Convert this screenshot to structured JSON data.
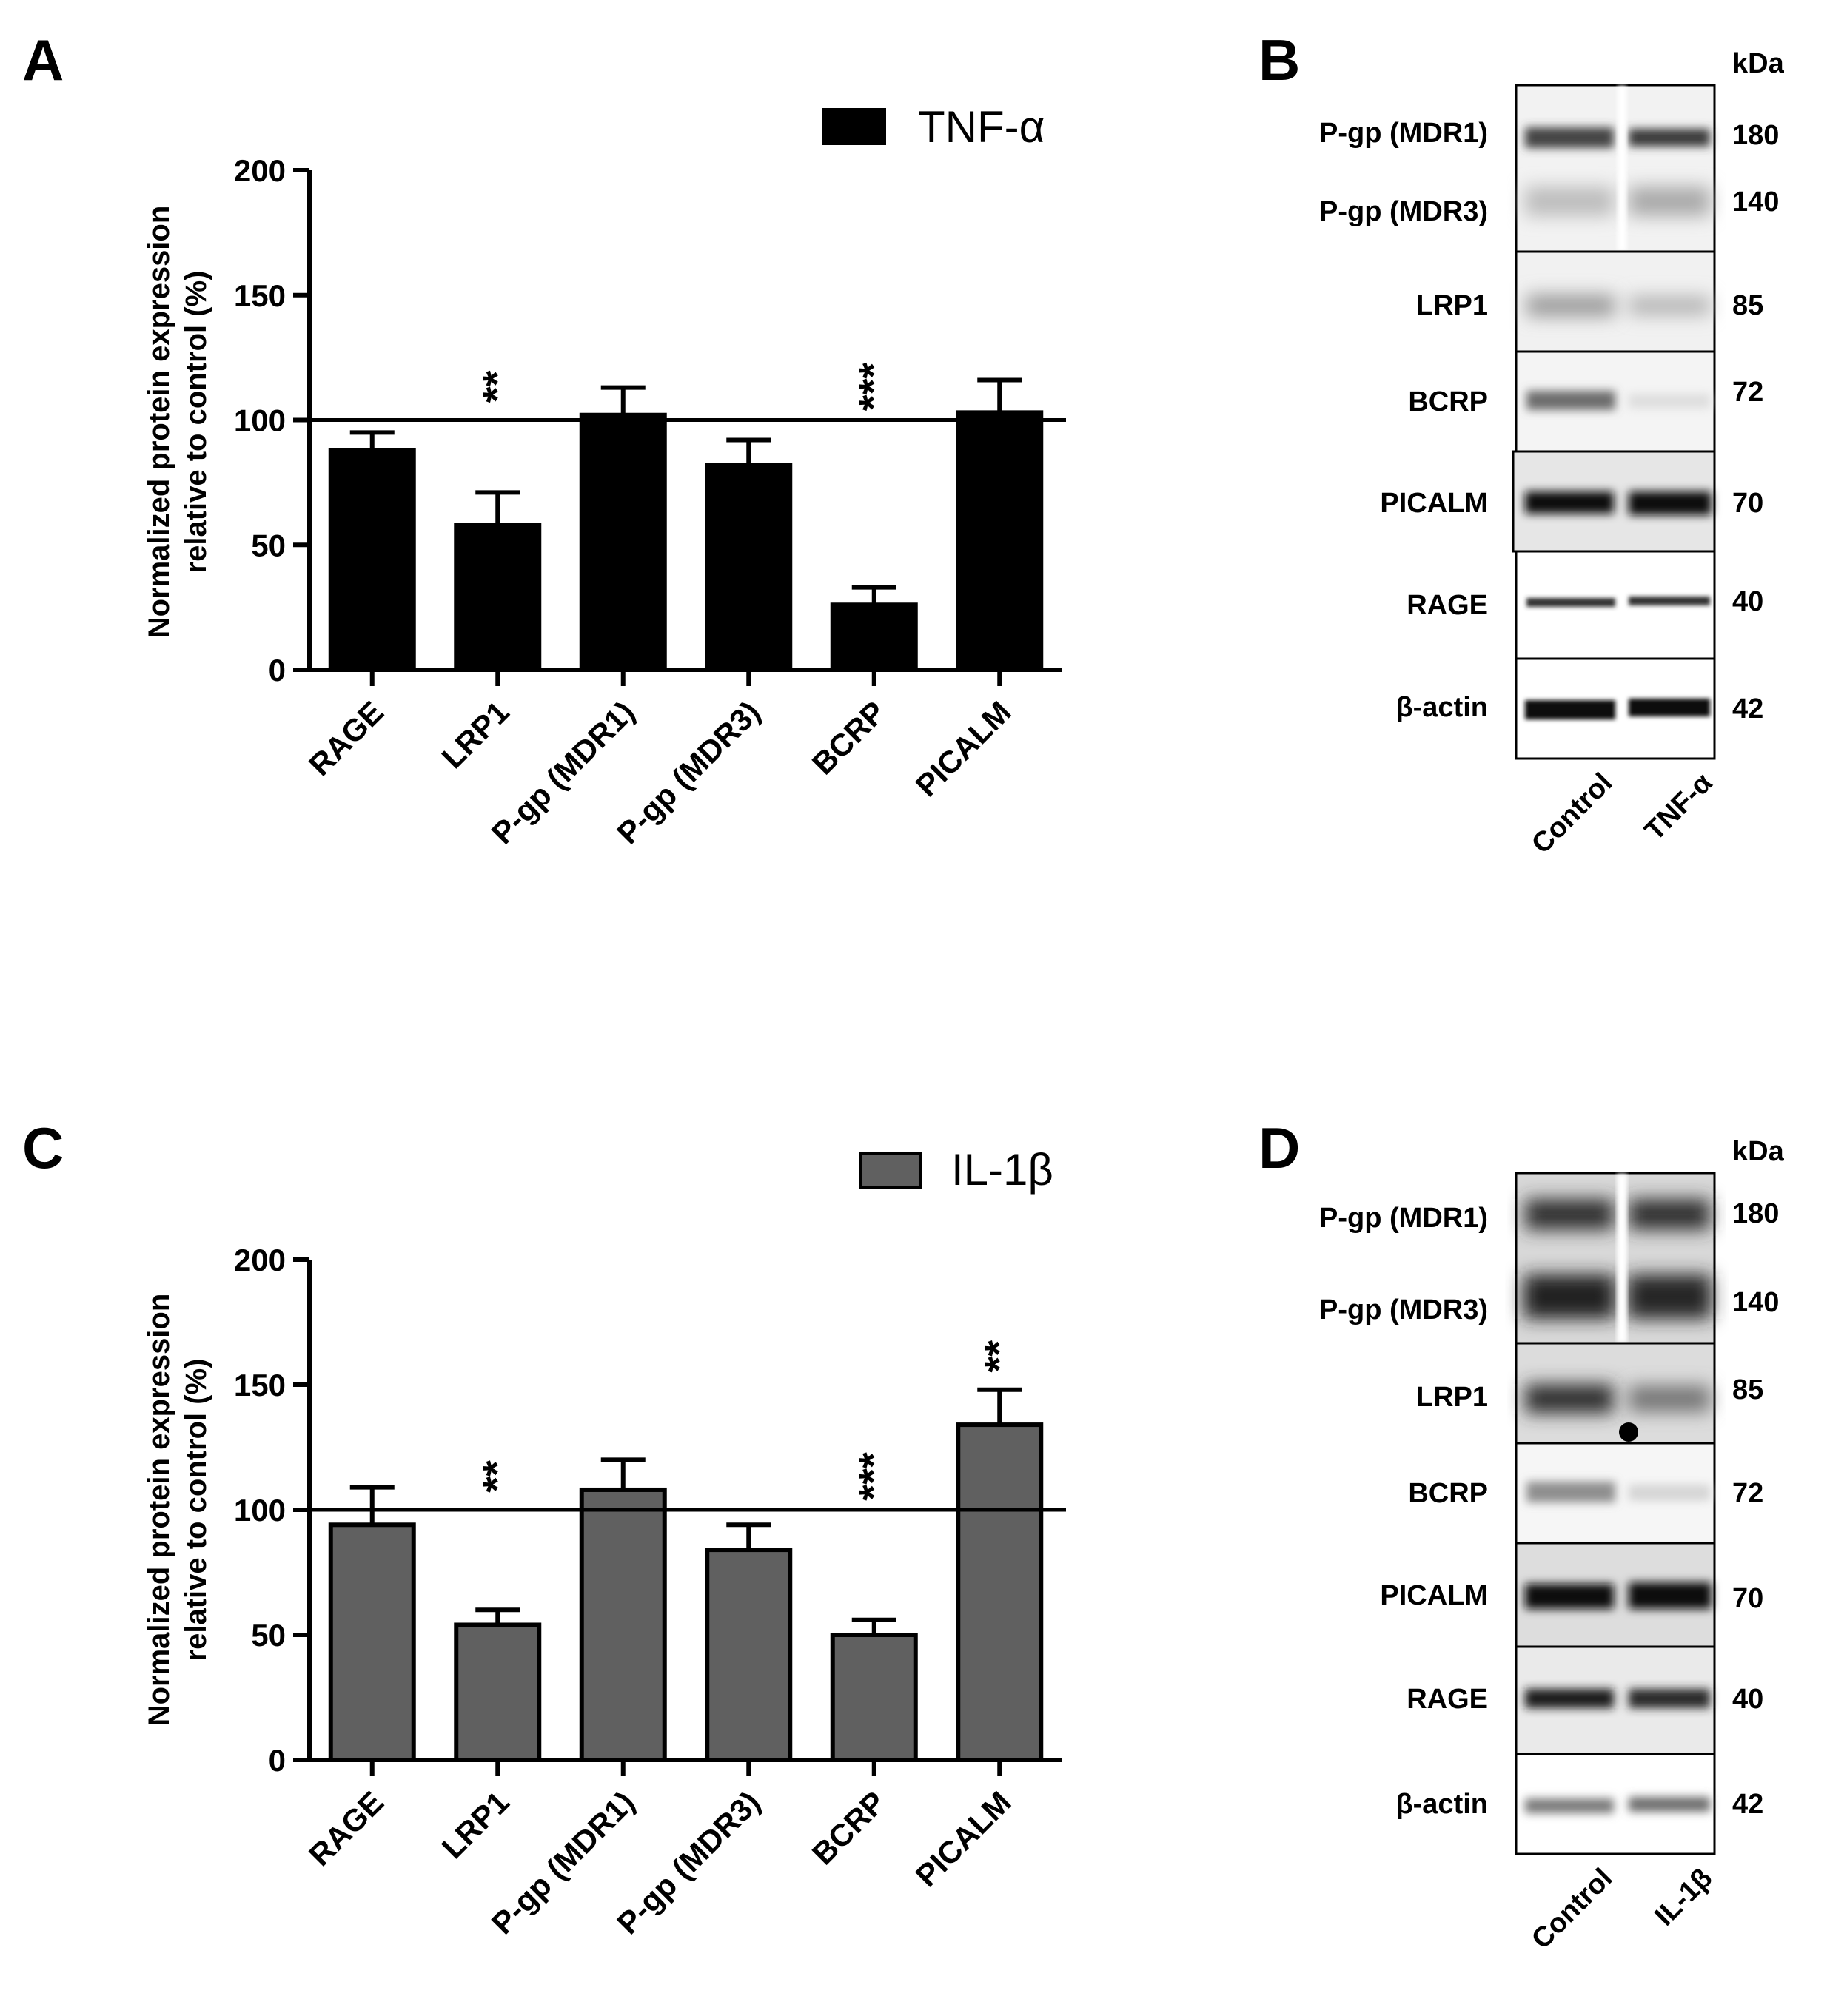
{
  "chart_data": [
    {
      "panel": "A",
      "type": "bar",
      "legend": "TNF-α",
      "bar_color": "#000000",
      "ylabel_line1": "Normalized protein expression",
      "ylabel_line2": "relative to control (%)",
      "ylim": [
        0,
        200
      ],
      "yticks": [
        0,
        50,
        100,
        150,
        200
      ],
      "yticks_text": [
        "0",
        "50",
        "100",
        "150",
        "200"
      ],
      "reference_line": 100,
      "categories": [
        "RAGE",
        "LRP1",
        "P-gp (MDR1)",
        "P-gp (MDR3)",
        "BCRP",
        "PICALM"
      ],
      "values": [
        88,
        58,
        102,
        82,
        26,
        103
      ],
      "errors": [
        7,
        13,
        11,
        10,
        7,
        13
      ],
      "significance": [
        "",
        "**",
        "",
        "",
        "***",
        ""
      ]
    },
    {
      "panel": "C",
      "type": "bar",
      "legend": "IL-1β",
      "bar_color": "#606060",
      "ylabel_line1": "Normalized protein expression",
      "ylabel_line2": "relative to control (%)",
      "ylim": [
        0,
        200
      ],
      "yticks": [
        0,
        50,
        100,
        150,
        200
      ],
      "yticks_text": [
        "0",
        "50",
        "100",
        "150",
        "200"
      ],
      "reference_line": 100,
      "categories": [
        "RAGE",
        "LRP1",
        "P-gp (MDR1)",
        "P-gp (MDR3)",
        "BCRP",
        "PICALM"
      ],
      "values": [
        94,
        54,
        108,
        84,
        50,
        134
      ],
      "errors": [
        15,
        6,
        12,
        10,
        6,
        14
      ],
      "significance": [
        "",
        "**",
        "",
        "",
        "***",
        "**"
      ]
    }
  ],
  "blots": [
    {
      "panel": "B",
      "unit_header": "kDa",
      "rows": [
        {
          "label": "P-gp (MDR1)",
          "kda": "180"
        },
        {
          "label": "P-gp (MDR3)",
          "kda": "140"
        },
        {
          "label": "LRP1",
          "kda": "85"
        },
        {
          "label": "BCRP",
          "kda": "72"
        },
        {
          "label": "PICALM",
          "kda": "70"
        },
        {
          "label": "RAGE",
          "kda": "40"
        },
        {
          "label": "β-actin",
          "kda": "42"
        }
      ],
      "lanes": [
        "Control",
        "TNF-α"
      ]
    },
    {
      "panel": "D",
      "unit_header": "kDa",
      "rows": [
        {
          "label": "P-gp (MDR1)",
          "kda": "180"
        },
        {
          "label": "P-gp (MDR3)",
          "kda": "140"
        },
        {
          "label": "LRP1",
          "kda": "85"
        },
        {
          "label": "BCRP",
          "kda": "72"
        },
        {
          "label": "PICALM",
          "kda": "70"
        },
        {
          "label": "RAGE",
          "kda": "40"
        },
        {
          "label": "β-actin",
          "kda": "42"
        }
      ],
      "lanes": [
        "Control",
        "IL-1β"
      ]
    }
  ]
}
